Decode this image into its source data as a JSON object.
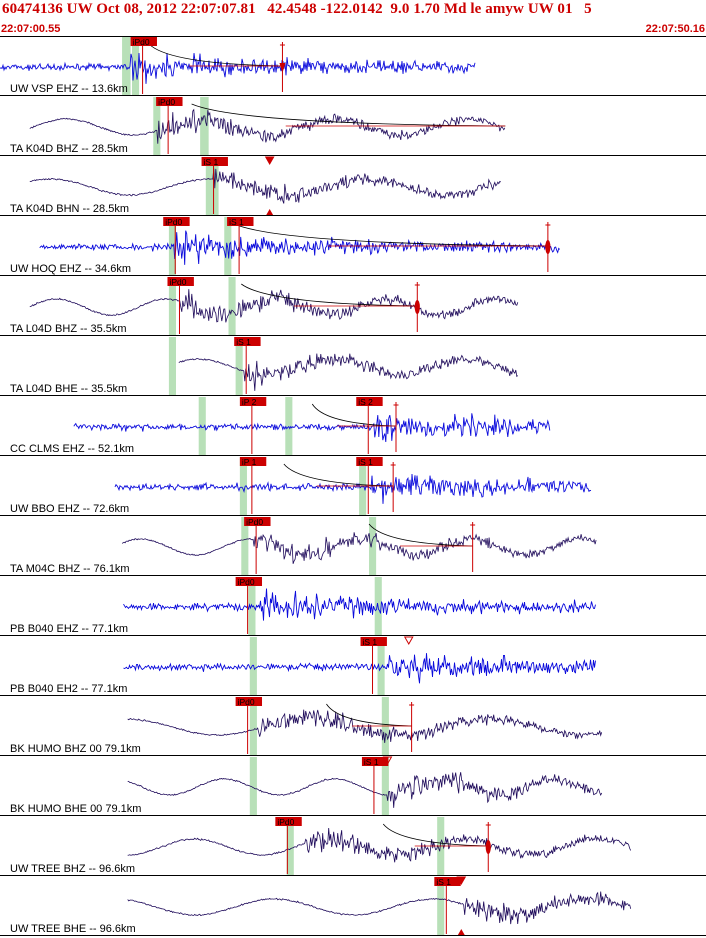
{
  "header": {
    "title": "60474136 UW Oct 08, 2012 22:07:07.81   42.4548 -122.0142  9.0 1.70 Md le amyw UW 01   5",
    "start_time": "22:07:00.55",
    "end_time": "22:07:50.16"
  },
  "colors": {
    "hf_trace": "#0b0bdc",
    "lp_trace": "#1e0a5a",
    "pick": "#cc0000",
    "pick_window": "#b8e0b8",
    "model_curve": "#000000"
  },
  "chart_data": {
    "type": "line",
    "x_unit": "seconds after 22:07:00.55",
    "xlim": [
      0,
      49.6
    ],
    "traces": [
      {
        "label": "UW VSP EHZ -- 13.6km",
        "style": "hf",
        "start": 0,
        "end": 33.5,
        "onset": 9.2,
        "windows": [
          [
            8.6,
            9.2
          ],
          [
            9.3,
            9.8
          ]
        ],
        "picks": [
          {
            "label": "iPd0",
            "t": 9.2
          }
        ],
        "marker": {
          "t": 19.9,
          "shape": "plus-tri"
        },
        "curve": {
          "from": 10.5,
          "to": 19.9
        }
      },
      {
        "label": "TA K04D BHZ -- 28.5km",
        "style": "lp",
        "start": 2.1,
        "end": 35.6,
        "onset": 11.1,
        "windows": [
          [
            10.8,
            11.3
          ],
          [
            14.1,
            14.7
          ]
        ],
        "picks": [
          {
            "label": "iPd0",
            "t": 11.0
          }
        ],
        "curve": {
          "from": 13.5,
          "to": 35.6
        }
      },
      {
        "label": "TA K04D BHN -- 28.5km",
        "style": "lp",
        "start": 2.1,
        "end": 35.3,
        "onset": 15.0,
        "windows": [
          [
            14.5,
            15.0
          ],
          [
            14.9,
            15.4
          ]
        ],
        "picks": [
          {
            "label": "iS 1",
            "t": 14.2
          }
        ],
        "marker": {
          "t": 19.0,
          "shape": "tri-both"
        }
      },
      {
        "label": "UW HOQ EHZ -- 34.6km",
        "style": "hf",
        "start": 2.8,
        "end": 39.5,
        "onset": 12.3,
        "windows": [
          [
            11.9,
            12.4
          ],
          [
            15.8,
            16.3
          ]
        ],
        "picks": [
          {
            "label": "iPd0",
            "t": 11.5
          },
          {
            "label": "iS 1",
            "t": 16.0
          }
        ],
        "marker": {
          "t": 38.6,
          "shape": "plus-ellipse"
        },
        "curve": {
          "from": 16.5,
          "to": 38.6
        }
      },
      {
        "label": "TA L04D BHZ -- 35.5km",
        "style": "lp",
        "start": 2.1,
        "end": 36.5,
        "onset": 12.7,
        "windows": [
          [
            11.9,
            12.4
          ],
          [
            16.1,
            16.6
          ]
        ],
        "picks": [
          {
            "label": "iPd0",
            "t": 11.8
          }
        ],
        "marker": {
          "t": 29.4,
          "shape": "plus-ellipse"
        },
        "curve": {
          "from": 17.0,
          "to": 29.4
        }
      },
      {
        "label": "TA L04D BHE -- 35.5km",
        "style": "lp",
        "start": 12.6,
        "end": 36.5,
        "onset": 17.2,
        "windows": [
          [
            11.9,
            12.4
          ],
          [
            16.6,
            17.1
          ]
        ],
        "picks": [
          {
            "label": "iS 1",
            "t": 16.5
          }
        ]
      },
      {
        "label": "CC CLMS EHZ -- 52.1km",
        "style": "hf",
        "start": 5.2,
        "end": 38.8,
        "onset": 26.3,
        "windows": [
          [
            14.0,
            14.5
          ],
          [
            20.1,
            20.6
          ]
        ],
        "picks": [
          {
            "label": "iP 2",
            "t": 16.9
          },
          {
            "label": "iS 2",
            "t": 25.1
          }
        ],
        "marker": {
          "t": 27.9,
          "shape": "plus"
        },
        "curve": {
          "from": 22.0,
          "to": 27.9
        }
      },
      {
        "label": "UW BBO EHZ -- 72.6km",
        "style": "hf",
        "start": 8.1,
        "end": 41.7,
        "onset": 26.1,
        "windows": [
          [
            16.9,
            17.4
          ],
          [
            25.3,
            25.8
          ]
        ],
        "picks": [
          {
            "label": "iP 1",
            "t": 16.9
          },
          {
            "label": "iS 1",
            "t": 25.1
          }
        ],
        "marker": {
          "t": 27.7,
          "shape": "plus"
        },
        "curve": {
          "from": 20.0,
          "to": 27.7
        }
      },
      {
        "label": "TA M04C BHZ -- 76.1km",
        "style": "lp",
        "start": 8.6,
        "end": 42.0,
        "onset": 17.9,
        "windows": [
          [
            17.0,
            17.5
          ],
          [
            26.0,
            26.5
          ]
        ],
        "picks": [
          {
            "label": "iPd0",
            "t": 17.2
          }
        ],
        "marker": {
          "t": 33.3,
          "shape": "plus"
        },
        "curve": {
          "from": 26.0,
          "to": 33.3
        }
      },
      {
        "label": "PB B040 EHZ -- 77.1km",
        "style": "hf",
        "start": 8.7,
        "end": 42.0,
        "onset": 18.3,
        "windows": [
          [
            17.5,
            18.0
          ],
          [
            26.4,
            26.9
          ]
        ],
        "picks": [
          {
            "label": "iPd0",
            "t": 16.6
          }
        ]
      },
      {
        "label": "PB B040 EH2 -- 77.1km",
        "style": "hf",
        "start": 8.7,
        "end": 42.0,
        "onset": 27.4,
        "windows": [
          [
            17.6,
            18.1
          ],
          [
            26.6,
            27.1
          ]
        ],
        "picks": [
          {
            "label": "iS 1",
            "t": 25.4
          }
        ],
        "marker": {
          "t": 28.8,
          "shape": "tri-down"
        }
      },
      {
        "label": "BK HUMO BHZ 00 79.1km",
        "style": "lp",
        "start": 9.0,
        "end": 42.4,
        "onset": 18.2,
        "windows": [
          [
            17.6,
            18.1
          ],
          [
            26.9,
            27.4
          ]
        ],
        "picks": [
          {
            "label": "iPd0",
            "t": 16.6
          }
        ],
        "marker": {
          "t": 29.0,
          "shape": "plus"
        },
        "curve": {
          "from": 23.0,
          "to": 29.0
        }
      },
      {
        "label": "BK HUMO BHE 00 79.1km",
        "style": "lp",
        "start": 9.0,
        "end": 42.4,
        "onset": 27.3,
        "windows": [
          [
            17.6,
            18.1
          ],
          [
            26.9,
            27.4
          ]
        ],
        "picks": [
          {
            "label": "iS 1",
            "t": 25.5
          }
        ],
        "marker": {
          "t": 27.3,
          "shape": "tri-down"
        }
      },
      {
        "label": "UW TREE BHZ -- 96.6km",
        "style": "lp",
        "start": 9.0,
        "end": 44.5,
        "onset": 21.5,
        "windows": [
          [
            20.2,
            20.7
          ],
          [
            30.8,
            31.3
          ]
        ],
        "picks": [
          {
            "label": "iPd0",
            "t": 19.4
          }
        ],
        "marker": {
          "t": 34.4,
          "shape": "plus-ellipse"
        },
        "curve": {
          "from": 27.0,
          "to": 34.4
        }
      },
      {
        "label": "UW TREE BHE -- 96.6km",
        "style": "lp",
        "start": 9.0,
        "end": 44.5,
        "onset": 32.7,
        "windows": [
          [
            30.8,
            31.3
          ]
        ],
        "picks": [
          {
            "label": "iS 1",
            "t": 30.6
          }
        ],
        "marker": {
          "t": 32.5,
          "shape": "tri-both"
        }
      }
    ]
  }
}
